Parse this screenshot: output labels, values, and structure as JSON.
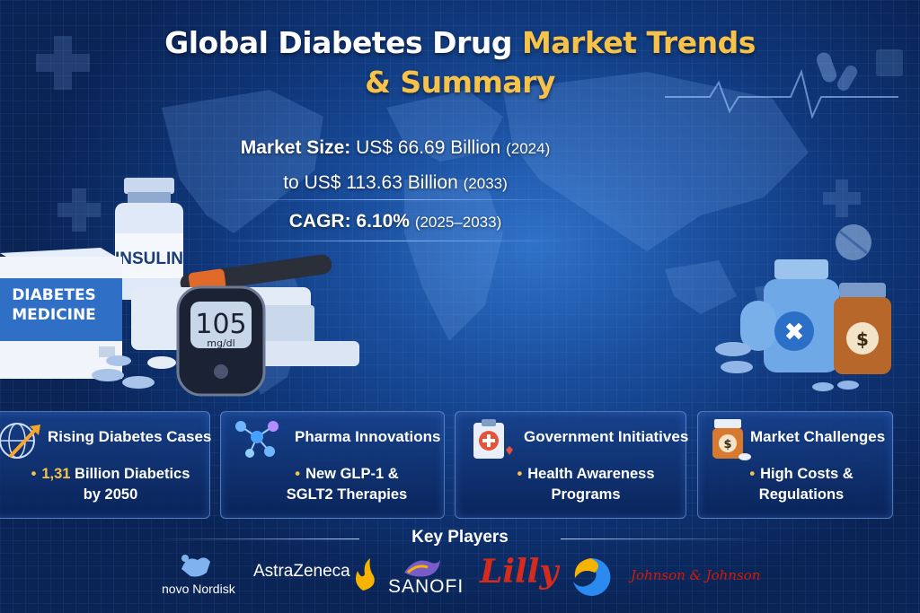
{
  "title": {
    "part1": "Global Diabetes Drug ",
    "part2": "Market Trends",
    "part3": "& Summary"
  },
  "market_size": {
    "label": "Market Size:",
    "start_value": "US$ 66.69 Billion",
    "start_year": "(2024)",
    "end_prefix": "to",
    "end_value": "US$ 113.63 Billion",
    "end_year": "(2033)"
  },
  "cagr": {
    "label": "CAGR:",
    "value": "6.10%",
    "period": "(2025–2033)"
  },
  "illustration": {
    "box_text_1": "DIABETES",
    "box_text_2": "MEDICINE",
    "vial_text": "INSULIN",
    "meter_value": "105",
    "meter_unit": "mg/dl"
  },
  "cards": [
    {
      "title": "Rising Diabetes Cases",
      "highlight": "1,31",
      "line1_rest": " Billion Diabetics",
      "line2": "by 2050",
      "icon": "globe-arrow-icon"
    },
    {
      "title": "Pharma Innovations",
      "line1": "New GLP-1 &",
      "line2": "SGLT2 Therapies",
      "icon": "molecule-icon"
    },
    {
      "title": "Government Initiatives",
      "line1": "Health Awareness",
      "line2": "Programs",
      "icon": "clipboard-cross-icon"
    },
    {
      "title": "Market Challenges",
      "line1": "High Costs &",
      "line2": "Regulations",
      "icon": "pill-bottle-dollar-icon"
    }
  ],
  "key_players": {
    "heading": "Key Players",
    "companies": [
      "novo Nordisk",
      "AstraZeneca",
      "SANOFI",
      "Lilly",
      "Johnson & Johnson"
    ]
  },
  "colors": {
    "accent": "#f6c24a",
    "background": "#0b2a63",
    "card_border": "#8cb4f0",
    "lilly_red": "#d52b1e",
    "jnj_red": "#d51900",
    "novo_blue": "#1c3f94"
  }
}
